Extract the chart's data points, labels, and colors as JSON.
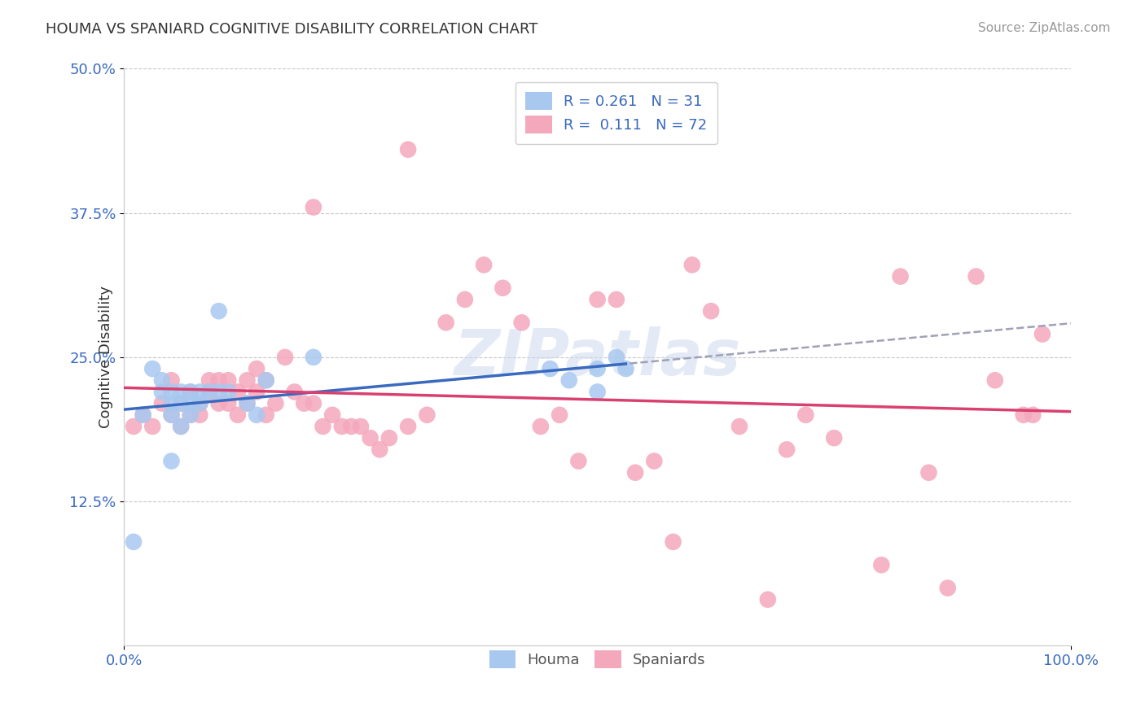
{
  "title": "HOUMA VS SPANIARD COGNITIVE DISABILITY CORRELATION CHART",
  "source": "Source: ZipAtlas.com",
  "ylabel": "Cognitive Disability",
  "xlim": [
    0.0,
    1.0
  ],
  "ylim": [
    0.0,
    0.5
  ],
  "ytick_positions": [
    0.125,
    0.25,
    0.375,
    0.5
  ],
  "ytick_labels": [
    "12.5%",
    "25.0%",
    "37.5%",
    "50.0%"
  ],
  "xtick_positions": [
    0.0,
    1.0
  ],
  "xtick_labels": [
    "0.0%",
    "100.0%"
  ],
  "background_color": "#ffffff",
  "grid_color": "#c8c8c8",
  "houma_color": "#a8c8f0",
  "spaniard_color": "#f4a8bc",
  "houma_line_color": "#3a6abf",
  "spaniard_line_color": "#d94070",
  "trend_dash_color": "#a0a0b8",
  "label_color": "#3a6abf",
  "legend_R_houma": "0.261",
  "legend_N_houma": "31",
  "legend_R_spaniard": "0.111",
  "legend_N_spaniard": "72",
  "houma_x": [
    0.01,
    0.02,
    0.03,
    0.04,
    0.04,
    0.05,
    0.05,
    0.05,
    0.06,
    0.06,
    0.06,
    0.07,
    0.07,
    0.07,
    0.08,
    0.08,
    0.09,
    0.1,
    0.1,
    0.11,
    0.13,
    0.14,
    0.15,
    0.2,
    0.45,
    0.47,
    0.5,
    0.5,
    0.52,
    0.53,
    0.05
  ],
  "houma_y": [
    0.09,
    0.2,
    0.24,
    0.22,
    0.23,
    0.2,
    0.21,
    0.22,
    0.19,
    0.21,
    0.22,
    0.2,
    0.21,
    0.22,
    0.21,
    0.22,
    0.22,
    0.29,
    0.22,
    0.22,
    0.21,
    0.2,
    0.23,
    0.25,
    0.24,
    0.23,
    0.24,
    0.22,
    0.25,
    0.24,
    0.16
  ],
  "spaniard_x": [
    0.01,
    0.02,
    0.03,
    0.04,
    0.05,
    0.05,
    0.06,
    0.06,
    0.07,
    0.07,
    0.08,
    0.08,
    0.09,
    0.09,
    0.1,
    0.1,
    0.11,
    0.11,
    0.12,
    0.12,
    0.13,
    0.13,
    0.14,
    0.14,
    0.15,
    0.15,
    0.16,
    0.17,
    0.18,
    0.19,
    0.2,
    0.21,
    0.22,
    0.23,
    0.24,
    0.25,
    0.26,
    0.27,
    0.28,
    0.3,
    0.3,
    0.32,
    0.34,
    0.36,
    0.38,
    0.4,
    0.42,
    0.44,
    0.46,
    0.48,
    0.5,
    0.52,
    0.54,
    0.56,
    0.58,
    0.6,
    0.62,
    0.65,
    0.68,
    0.7,
    0.72,
    0.75,
    0.8,
    0.82,
    0.85,
    0.87,
    0.9,
    0.92,
    0.95,
    0.96,
    0.97,
    0.2
  ],
  "spaniard_y": [
    0.19,
    0.2,
    0.19,
    0.21,
    0.2,
    0.23,
    0.19,
    0.21,
    0.2,
    0.22,
    0.2,
    0.21,
    0.22,
    0.23,
    0.21,
    0.23,
    0.21,
    0.23,
    0.2,
    0.22,
    0.21,
    0.23,
    0.22,
    0.24,
    0.23,
    0.2,
    0.21,
    0.25,
    0.22,
    0.21,
    0.21,
    0.19,
    0.2,
    0.19,
    0.19,
    0.19,
    0.18,
    0.17,
    0.18,
    0.43,
    0.19,
    0.2,
    0.28,
    0.3,
    0.33,
    0.31,
    0.28,
    0.19,
    0.2,
    0.16,
    0.3,
    0.3,
    0.15,
    0.16,
    0.09,
    0.33,
    0.29,
    0.19,
    0.04,
    0.17,
    0.2,
    0.18,
    0.07,
    0.32,
    0.15,
    0.05,
    0.32,
    0.23,
    0.2,
    0.2,
    0.27,
    0.38
  ]
}
